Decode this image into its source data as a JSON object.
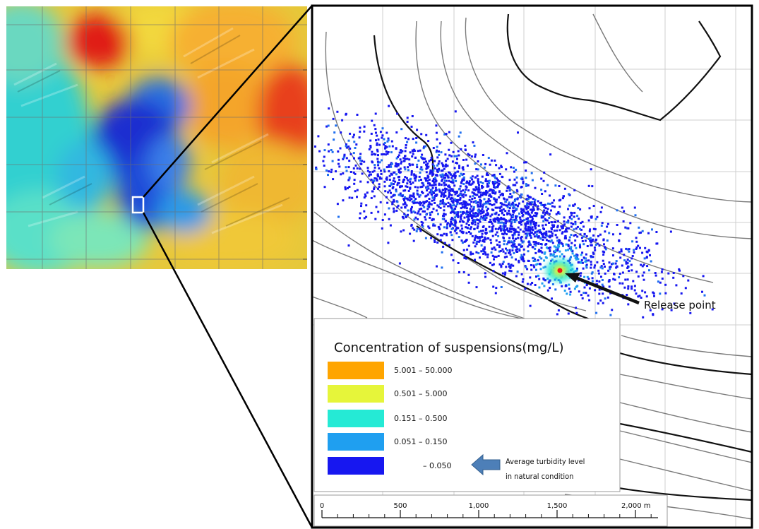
{
  "legend": {
    "title": "Concentration of suspensions(mg/L)",
    "classes": [
      {
        "label": "5.001 – 50.000",
        "color": "#ffa500"
      },
      {
        "label": "0.501 – 5.000",
        "color": "#e6f53a"
      },
      {
        "label": "0.151 – 0.500",
        "color": "#25ead5"
      },
      {
        "label": "0.051 – 0.150",
        "color": "#1f9ff0"
      },
      {
        "label": "– 0.050",
        "color": "#1717f0"
      }
    ],
    "note_line1": "Average turbidity level",
    "note_line2": "in natural condition",
    "note_arrow_color": "#4d7fb8",
    "note_icon": "left-arrow-icon"
  },
  "annotation": {
    "release_label": "Release point"
  },
  "scalebar": {
    "ticks": [
      "0",
      "500",
      "1,000",
      "1,500",
      "2,000 m"
    ]
  },
  "overview_map": {
    "colormap": [
      "#0018d8",
      "#1f9ff0",
      "#25ead5",
      "#e6f53a",
      "#f7a72c",
      "#e82818"
    ]
  },
  "colors": {
    "plume_core": "#e81818",
    "contour_major": "#111111",
    "contour_minor": "#7a7a7a"
  }
}
